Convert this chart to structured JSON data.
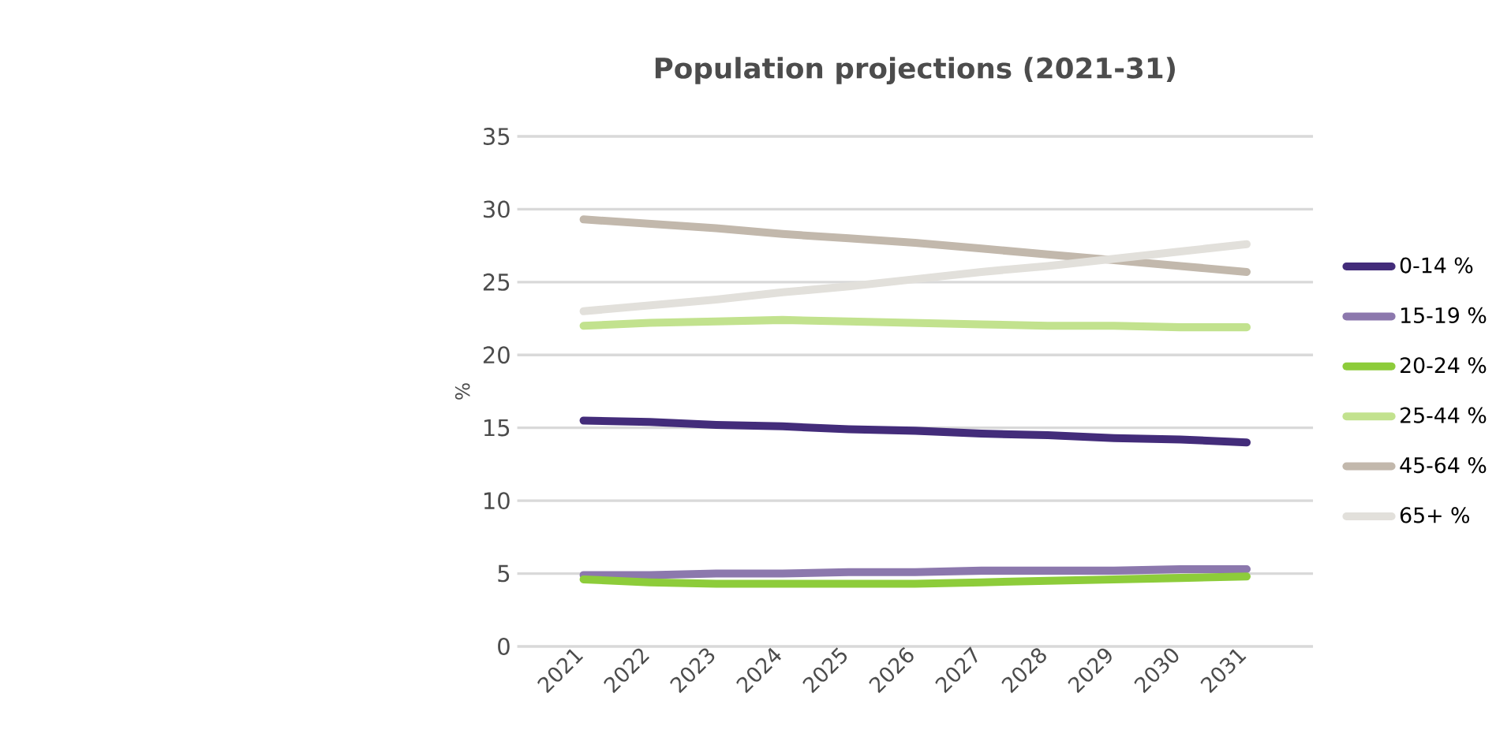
{
  "chart_data": {
    "type": "line",
    "title": "Population projections (2021-31)",
    "ylabel": "%",
    "categories": [
      "2021",
      "2022",
      "2023",
      "2024",
      "2025",
      "2026",
      "2027",
      "2028",
      "2029",
      "2030",
      "2031"
    ],
    "ylim": [
      0,
      35
    ],
    "yticks": [
      0,
      5,
      10,
      15,
      20,
      25,
      30,
      35
    ],
    "grid": "y",
    "legend": "right",
    "marker": "none",
    "line_style": "solid",
    "series": [
      {
        "name": "0-14 %",
        "color": "#432c7a",
        "values": [
          15.5,
          15.4,
          15.2,
          15.1,
          14.9,
          14.8,
          14.6,
          14.5,
          14.3,
          14.2,
          14.0
        ]
      },
      {
        "name": "15-19 %",
        "color": "#8c78ad",
        "values": [
          4.9,
          4.9,
          5.0,
          5.0,
          5.1,
          5.1,
          5.2,
          5.2,
          5.2,
          5.3,
          5.3
        ]
      },
      {
        "name": "20-24 %",
        "color": "#8dcc3a",
        "values": [
          4.6,
          4.4,
          4.3,
          4.3,
          4.3,
          4.3,
          4.4,
          4.5,
          4.6,
          4.7,
          4.8
        ]
      },
      {
        "name": "25-44 %",
        "color": "#c2e28e",
        "values": [
          22.0,
          22.2,
          22.3,
          22.4,
          22.3,
          22.2,
          22.1,
          22.0,
          22.0,
          21.9,
          21.9
        ]
      },
      {
        "name": "45-64 %",
        "color": "#c2b8ac",
        "values": [
          29.3,
          29.0,
          28.7,
          28.3,
          28.0,
          27.7,
          27.3,
          26.9,
          26.5,
          26.1,
          25.7
        ]
      },
      {
        "name": "65+ %",
        "color": "#e2e0db",
        "values": [
          23.0,
          23.4,
          23.8,
          24.3,
          24.7,
          25.2,
          25.7,
          26.1,
          26.6,
          27.1,
          27.6
        ]
      }
    ]
  }
}
